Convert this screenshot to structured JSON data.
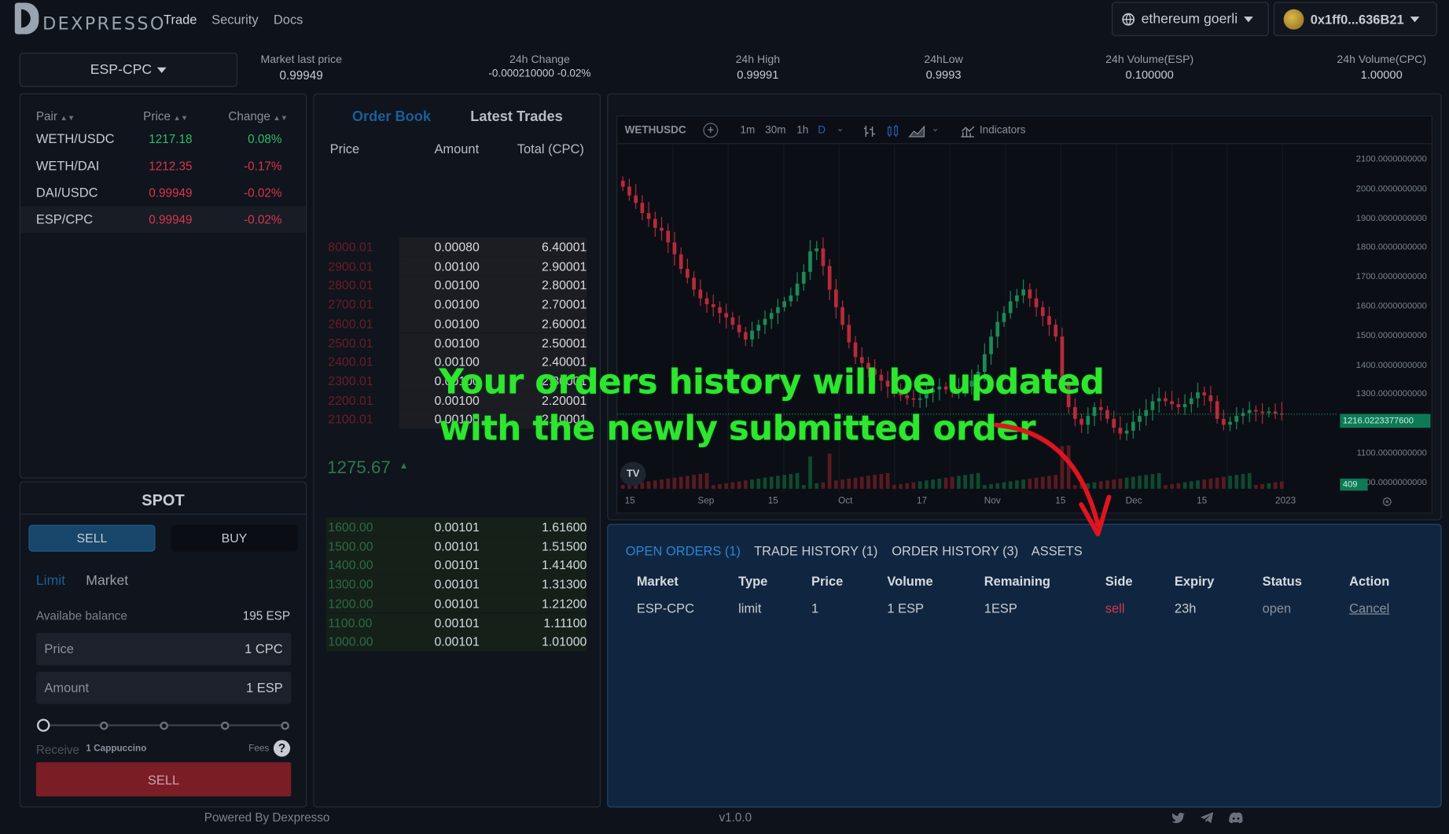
{
  "header": {
    "logo_text": "DEXPRESSO",
    "nav": [
      "Trade",
      "Security",
      "Docs"
    ],
    "network_label": "ethereum goerli",
    "account_label": "0x1ff0...636B21"
  },
  "market": {
    "selected": "ESP-CPC",
    "stats": [
      {
        "label": "Market last price",
        "value": "0.99949"
      },
      {
        "label": "24h Change",
        "value": "-0.000210000 -0.02%"
      },
      {
        "label": "24h High",
        "value": "0.99991"
      },
      {
        "label": "24hLow",
        "value": "0.9993"
      },
      {
        "label": "24h Volume(ESP)",
        "value": "0.100000"
      },
      {
        "label": "24h Volume(CPC)",
        "value": "1.00000"
      }
    ]
  },
  "pairs": {
    "headers": [
      "Pair",
      "Price",
      "Change"
    ],
    "rows": [
      {
        "pair": "WETH/USDC",
        "price": "1217.18",
        "change": "0.08%",
        "dir": "up"
      },
      {
        "pair": "WETH/DAI",
        "price": "1212.35",
        "change": "-0.17%",
        "dir": "down"
      },
      {
        "pair": "DAI/USDC",
        "price": "0.99949",
        "change": "-0.02%",
        "dir": "down"
      },
      {
        "pair": "ESP/CPC",
        "price": "0.99949",
        "change": "-0.02%",
        "dir": "down"
      }
    ]
  },
  "spot": {
    "title": "SPOT",
    "sell_tab": "SELL",
    "buy_tab": "BUY",
    "limit_tab": "Limit",
    "market_tab": "Market",
    "balance_label": "Availabe balance",
    "balance_value": "195 ESP",
    "price_label": "Price",
    "price_value": "1",
    "price_unit": "CPC",
    "amount_label": "Amount",
    "amount_value": "1",
    "amount_unit": "ESP",
    "slider_value": 0,
    "receive_label": "Receive",
    "receive_value": "1 Cappuccino",
    "fees_label": "Fees",
    "submit_label": "SELL"
  },
  "orderbook": {
    "tabs": [
      "Order Book",
      "Latest Trades"
    ],
    "headers": [
      "Price",
      "Amount",
      "Total (CPC)"
    ],
    "asks": [
      {
        "price": "8000.01",
        "amount": "0.00080",
        "total": "6.40001",
        "depth": 0.72
      },
      {
        "price": "2900.01",
        "amount": "0.00100",
        "total": "2.90001",
        "depth": 0.72
      },
      {
        "price": "2800.01",
        "amount": "0.00100",
        "total": "2.80001",
        "depth": 0.72
      },
      {
        "price": "2700.01",
        "amount": "0.00100",
        "total": "2.70001",
        "depth": 0.72
      },
      {
        "price": "2600.01",
        "amount": "0.00100",
        "total": "2.60001",
        "depth": 0.72
      },
      {
        "price": "2500.01",
        "amount": "0.00100",
        "total": "2.50001",
        "depth": 0.72
      },
      {
        "price": "2400.01",
        "amount": "0.00100",
        "total": "2.40001",
        "depth": 0.72
      },
      {
        "price": "2300.01",
        "amount": "0.00100",
        "total": "2.30001",
        "depth": 0.72
      },
      {
        "price": "2200.01",
        "amount": "0.00100",
        "total": "2.20001",
        "depth": 0.72
      },
      {
        "price": "2100.01",
        "amount": "0.00100",
        "total": "2.10001",
        "depth": 0.72
      }
    ],
    "last_price": "1275.67",
    "bids": [
      {
        "price": "1600.00",
        "amount": "0.00101",
        "total": "1.61600",
        "depth": 1
      },
      {
        "price": "1500.00",
        "amount": "0.00101",
        "total": "1.51500",
        "depth": 1
      },
      {
        "price": "1400.00",
        "amount": "0.00101",
        "total": "1.41400",
        "depth": 1
      },
      {
        "price": "1300.00",
        "amount": "0.00101",
        "total": "1.31300",
        "depth": 1
      },
      {
        "price": "1200.00",
        "amount": "0.00101",
        "total": "1.21200",
        "depth": 1
      },
      {
        "price": "1100.00",
        "amount": "0.00101",
        "total": "1.11100",
        "depth": 1
      },
      {
        "price": "1000.00",
        "amount": "0.00101",
        "total": "1.01000",
        "depth": 1
      }
    ]
  },
  "chart_toolbar": {
    "symbol": "WETHUSDC",
    "intervals": [
      "1m",
      "30m",
      "1h",
      "D"
    ],
    "indicators_label": "Indicators"
  },
  "chart_data": {
    "type": "candlestick",
    "y_ticks": [
      "2100.0000000000",
      "2000.0000000000",
      "1900.0000000000",
      "1800.0000000000",
      "1700.0000000000",
      "1600.0000000000",
      "1500.0000000000",
      "1400.0000000000",
      "1300.0000000000",
      "1200.0000000000",
      "1100.0000000000",
      "1000.0000000000"
    ],
    "ylim": [
      1000,
      2100
    ],
    "x_ticks": [
      "15",
      "Sep",
      "15",
      "Oct",
      "17",
      "Nov",
      "15",
      "Dec",
      "15",
      "2023"
    ],
    "last_price_label": "1216.0223377600",
    "volume_label": "409",
    "closes": [
      1990,
      1960,
      1935,
      1900,
      1880,
      1850,
      1840,
      1800,
      1760,
      1710,
      1680,
      1640,
      1610,
      1590,
      1580,
      1560,
      1545,
      1520,
      1495,
      1470,
      1500,
      1520,
      1540,
      1560,
      1580,
      1600,
      1620,
      1660,
      1700,
      1770,
      1780,
      1720,
      1640,
      1580,
      1520,
      1460,
      1410,
      1390,
      1370,
      1350,
      1330,
      1310,
      1290,
      1280,
      1270,
      1265,
      1270,
      1290,
      1300,
      1310,
      1300,
      1290,
      1300,
      1310,
      1330,
      1360,
      1420,
      1480,
      1530,
      1560,
      1600,
      1620,
      1640,
      1610,
      1580,
      1550,
      1520,
      1480,
      1320,
      1240,
      1200,
      1180,
      1210,
      1240,
      1230,
      1200,
      1170,
      1150,
      1160,
      1190,
      1210,
      1230,
      1260,
      1270,
      1260,
      1250,
      1240,
      1250,
      1270,
      1290,
      1280,
      1260,
      1200,
      1180,
      1190,
      1210,
      1220,
      1230,
      1225,
      1220,
      1225,
      1218,
      1216
    ]
  },
  "orders": {
    "tabs": [
      "OPEN ORDERS (1)",
      "TRADE HISTORY (1)",
      "ORDER HISTORY (3)",
      "ASSETS"
    ],
    "headers": [
      "Market",
      "Type",
      "Price",
      "Volume",
      "Remaining",
      "Side",
      "Expiry",
      "Status",
      "Action"
    ],
    "rows": [
      {
        "market": "ESP-CPC",
        "type": "limit",
        "price": "1",
        "volume": "1 ESP",
        "remaining": "1ESP",
        "side": "sell",
        "expiry": "23h",
        "status": "open",
        "action": "Cancel"
      }
    ]
  },
  "overlay": {
    "line1": "Your orders history will be updated",
    "line2": "with the newly submitted order"
  },
  "footer": {
    "powered": "Powered By Dexpresso",
    "version": "v1.0.0"
  },
  "colors": {
    "up": "#2fbd6a",
    "down": "#d9364b",
    "accent": "#2a86d6",
    "annotation": "#2ee62e",
    "arrow": "#e0141e"
  }
}
